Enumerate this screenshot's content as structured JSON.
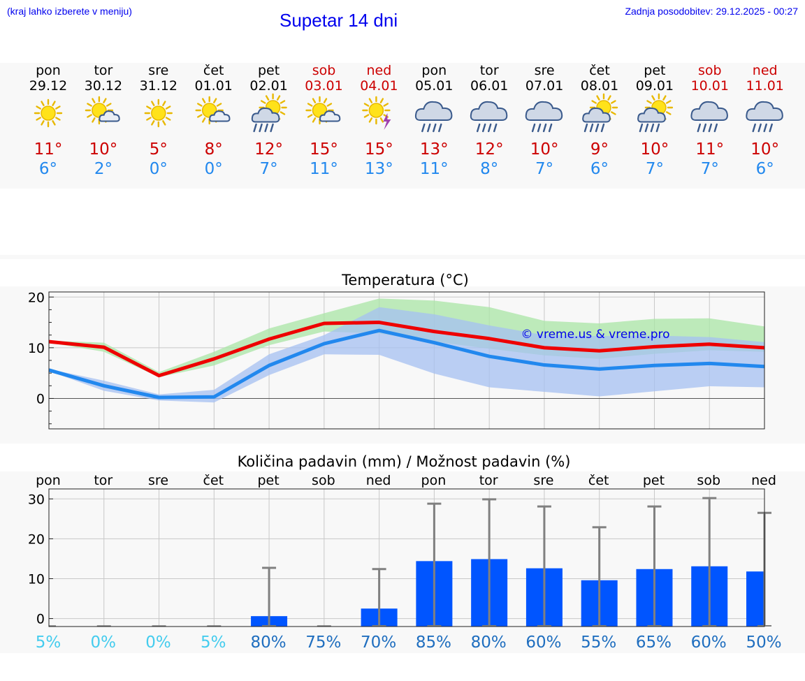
{
  "header": {
    "hint": "(kraj lahko izberete v meniju)",
    "title": "Supetar 14 dni",
    "updated": "Zadnja posodobitev: 29.12.2025 - 00:27"
  },
  "colors": {
    "max": "#cc0000",
    "min": "#2288ee",
    "weekend": "#cc0000",
    "text": "#000000",
    "bar": "#0055ff",
    "whisker": "#808080",
    "chance_low": "#44ccee",
    "chance_high": "#1f6ebf",
    "title_link": "#0000ee",
    "band_max": "#a9e6a6",
    "band_min": "#a5c0f2"
  },
  "days": [
    {
      "name": "pon",
      "date": "29.12",
      "weekend": false,
      "icon": "sunny-icon",
      "max": "11°",
      "min": "6°"
    },
    {
      "name": "tor",
      "date": "30.12",
      "weekend": false,
      "icon": "sun-cloud-icon",
      "max": "10°",
      "min": "2°"
    },
    {
      "name": "sre",
      "date": "31.12",
      "weekend": false,
      "icon": "sunny-icon",
      "max": "5°",
      "min": "0°"
    },
    {
      "name": "čet",
      "date": "01.01",
      "weekend": false,
      "icon": "sun-cloud-icon",
      "max": "8°",
      "min": "0°"
    },
    {
      "name": "pet",
      "date": "02.01",
      "weekend": false,
      "icon": "sun-cloud-rain-icon",
      "max": "12°",
      "min": "7°"
    },
    {
      "name": "sob",
      "date": "03.01",
      "weekend": true,
      "icon": "sun-cloud-icon",
      "max": "15°",
      "min": "11°"
    },
    {
      "name": "ned",
      "date": "04.01",
      "weekend": true,
      "icon": "sun-thunder-icon",
      "max": "15°",
      "min": "13°"
    },
    {
      "name": "pon",
      "date": "05.01",
      "weekend": false,
      "icon": "cloud-rain-icon",
      "max": "13°",
      "min": "11°"
    },
    {
      "name": "tor",
      "date": "06.01",
      "weekend": false,
      "icon": "cloud-rain-icon",
      "max": "12°",
      "min": "8°"
    },
    {
      "name": "sre",
      "date": "07.01",
      "weekend": false,
      "icon": "cloud-rain-icon",
      "max": "10°",
      "min": "7°"
    },
    {
      "name": "čet",
      "date": "08.01",
      "weekend": false,
      "icon": "sun-cloud-rain-icon",
      "max": "9°",
      "min": "6°"
    },
    {
      "name": "pet",
      "date": "09.01",
      "weekend": false,
      "icon": "sun-cloud-rain-icon",
      "max": "10°",
      "min": "7°"
    },
    {
      "name": "sob",
      "date": "10.01",
      "weekend": true,
      "icon": "cloud-rain-icon",
      "max": "11°",
      "min": "7°"
    },
    {
      "name": "ned",
      "date": "11.01",
      "weekend": true,
      "icon": "cloud-rain-icon",
      "max": "10°",
      "min": "6°"
    }
  ],
  "chart_data": [
    {
      "type": "line",
      "title": "Temperatura (°C)",
      "watermark": "© vreme.us & vreme.pro",
      "ylim": [
        -6,
        21
      ],
      "yticks": [
        "20",
        "10",
        "0"
      ],
      "ytick_values": [
        20,
        10,
        0
      ],
      "x_days": 13,
      "series": [
        {
          "name": "max",
          "values": [
            11.2,
            10.1,
            4.5,
            7.8,
            11.7,
            14.8,
            15.0,
            13.2,
            11.8,
            10.0,
            9.4,
            10.2,
            10.7,
            10.0
          ]
        },
        {
          "name": "min",
          "values": [
            5.6,
            2.5,
            0.2,
            0.3,
            6.5,
            10.8,
            13.4,
            11.0,
            8.3,
            6.6,
            5.8,
            6.5,
            6.9,
            6.3
          ]
        }
      ],
      "bands": [
        {
          "name": "max_range",
          "low": [
            11.0,
            9.2,
            4.2,
            6.5,
            10.5,
            13.2,
            12.8,
            11.2,
            9.8,
            8.5,
            7.8,
            8.8,
            9.5,
            9.2
          ],
          "high": [
            11.4,
            11.0,
            5.2,
            9.2,
            13.8,
            16.8,
            19.7,
            19.3,
            18.0,
            15.3,
            14.8,
            15.7,
            15.8,
            14.2
          ]
        },
        {
          "name": "min_range",
          "low": [
            5.4,
            1.5,
            -0.4,
            -0.8,
            4.6,
            8.7,
            8.6,
            4.9,
            2.2,
            1.3,
            0.4,
            1.4,
            2.4,
            2.2
          ],
          "high": [
            5.8,
            3.5,
            0.8,
            1.7,
            8.7,
            12.5,
            18.0,
            16.6,
            14.4,
            12.5,
            12.3,
            12.4,
            12.1,
            11.1
          ]
        }
      ]
    },
    {
      "type": "bar",
      "title": "Količina padavin (mm) / Možnost padavin (%)",
      "ylim": [
        -2,
        32.5
      ],
      "yticks": [
        "30",
        "20",
        "10",
        "0"
      ],
      "ytick_values": [
        30,
        20,
        10,
        0
      ],
      "categories": [
        "pon",
        "tor",
        "sre",
        "čet",
        "pet",
        "sob",
        "ned",
        "pon",
        "tor",
        "sre",
        "čet",
        "pet",
        "sob",
        "ned"
      ],
      "values": [
        0,
        0,
        0,
        0,
        0.6,
        0,
        2.5,
        14.4,
        14.9,
        12.6,
        9.6,
        12.4,
        13.1,
        11.8
      ],
      "error_high": [
        0,
        0,
        0,
        0,
        12.7,
        0,
        12.4,
        28.8,
        29.9,
        28.1,
        22.9,
        28.1,
        30.2,
        26.5
      ],
      "chance": [
        "5%",
        "0%",
        "0%",
        "5%",
        "80%",
        "75%",
        "70%",
        "85%",
        "80%",
        "60%",
        "55%",
        "65%",
        "60%",
        "50%"
      ]
    }
  ]
}
